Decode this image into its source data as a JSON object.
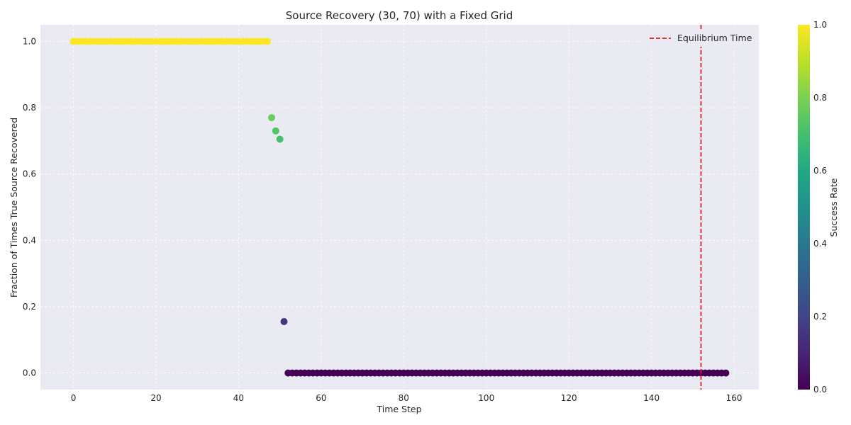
{
  "chart_data": {
    "type": "scatter",
    "title": "Source Recovery (30, 70) with a Fixed Grid",
    "xlabel": "Time Step",
    "ylabel": "Fraction of Times True Source Recovered",
    "xlim": [
      -8,
      166
    ],
    "ylim": [
      -0.05,
      1.05
    ],
    "xticks": [
      0,
      20,
      40,
      60,
      80,
      100,
      120,
      140,
      160
    ],
    "yticks": [
      0.0,
      0.2,
      0.4,
      0.6,
      0.8,
      1.0
    ],
    "xtick_labels": [
      "0",
      "20",
      "40",
      "60",
      "80",
      "100",
      "120",
      "140",
      "160"
    ],
    "ytick_labels": [
      "0.0",
      "0.2",
      "0.4",
      "0.6",
      "0.8",
      "1.0"
    ],
    "grid": true,
    "legend_position": "top-right",
    "series": [
      {
        "x": [
          0,
          1,
          2,
          3,
          4,
          5,
          6,
          7,
          8,
          9,
          10,
          11,
          12,
          13,
          14,
          15,
          16,
          17,
          18,
          19,
          20,
          21,
          22,
          23,
          24,
          25,
          26,
          27,
          28,
          29,
          30,
          31,
          32,
          33,
          34,
          35,
          36,
          37,
          38,
          39,
          40,
          41,
          42,
          43,
          44,
          45,
          46,
          47,
          48,
          49,
          50,
          51,
          52,
          53,
          54,
          55,
          56,
          57,
          58,
          59,
          60,
          61,
          62,
          63,
          64,
          65,
          66,
          67,
          68,
          69,
          70,
          71,
          72,
          73,
          74,
          75,
          76,
          77,
          78,
          79,
          80,
          81,
          82,
          83,
          84,
          85,
          86,
          87,
          88,
          89,
          90,
          91,
          92,
          93,
          94,
          95,
          96,
          97,
          98,
          99,
          100,
          101,
          102,
          103,
          104,
          105,
          106,
          107,
          108,
          109,
          110,
          111,
          112,
          113,
          114,
          115,
          116,
          117,
          118,
          119,
          120,
          121,
          122,
          123,
          124,
          125,
          126,
          127,
          128,
          129,
          130,
          131,
          132,
          133,
          134,
          135,
          136,
          137,
          138,
          139,
          140,
          141,
          142,
          143,
          144,
          145,
          146,
          147,
          148,
          149,
          150,
          151,
          152,
          153,
          154,
          155,
          156,
          157,
          158
        ],
        "y": [
          1,
          1,
          1,
          1,
          1,
          1,
          1,
          1,
          1,
          1,
          1,
          1,
          1,
          1,
          1,
          1,
          1,
          1,
          1,
          1,
          1,
          1,
          1,
          1,
          1,
          1,
          1,
          1,
          1,
          1,
          1,
          1,
          1,
          1,
          1,
          1,
          1,
          1,
          1,
          1,
          1,
          1,
          1,
          1,
          1,
          1,
          1,
          1,
          0.77,
          0.73,
          0.705,
          0.155,
          0,
          0,
          0,
          0,
          0,
          0,
          0,
          0,
          0,
          0,
          0,
          0,
          0,
          0,
          0,
          0,
          0,
          0,
          0,
          0,
          0,
          0,
          0,
          0,
          0,
          0,
          0,
          0,
          0,
          0,
          0,
          0,
          0,
          0,
          0,
          0,
          0,
          0,
          0,
          0,
          0,
          0,
          0,
          0,
          0,
          0,
          0,
          0,
          0,
          0,
          0,
          0,
          0,
          0,
          0,
          0,
          0,
          0,
          0,
          0,
          0,
          0,
          0,
          0,
          0,
          0,
          0,
          0,
          0,
          0,
          0,
          0,
          0,
          0,
          0,
          0,
          0,
          0,
          0,
          0,
          0,
          0,
          0,
          0,
          0,
          0,
          0,
          0,
          0,
          0,
          0,
          0,
          0,
          0,
          0,
          0,
          0,
          0,
          0,
          0,
          0,
          0,
          0,
          0,
          0,
          0,
          0
        ]
      }
    ],
    "vline": {
      "x": 152,
      "label": "Equilibrium Time",
      "color": "#e41a1c"
    },
    "colorbar": {
      "label": "Success Rate",
      "range": [
        0.0,
        1.0
      ],
      "ticks": [
        0.0,
        0.2,
        0.4,
        0.6,
        0.8,
        1.0
      ],
      "tick_labels": [
        "0.0",
        "0.2",
        "0.4",
        "0.6",
        "0.8",
        "1.0"
      ],
      "colormap": "viridis"
    }
  }
}
